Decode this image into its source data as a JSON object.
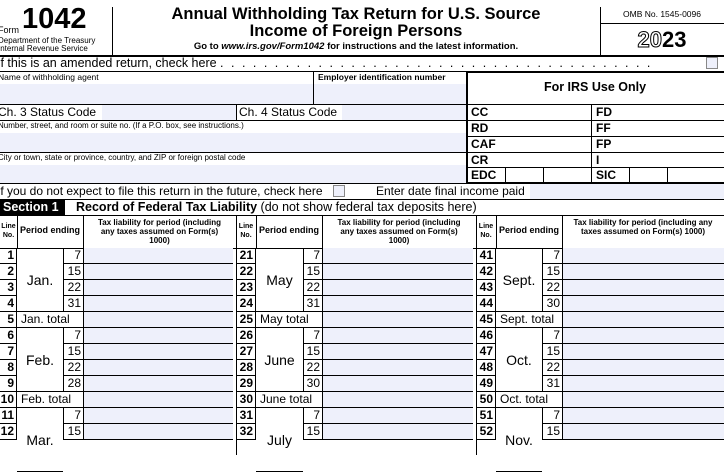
{
  "header": {
    "form_label": "Form",
    "form_number": "1042",
    "dept": "Department of the Treasury",
    "irs": "Internal Revenue Service",
    "title_line1": "Annual Withholding Tax Return for U.S. Source",
    "title_line2": "Income of Foreign Persons",
    "goto_prefix": "Go to ",
    "goto_url": "www.irs.gov/Form1042",
    "goto_suffix": " for instructions and the latest information.",
    "omb": "OMB No. 1545-0096",
    "year_outline": "20",
    "year_bold": "23"
  },
  "amended": {
    "label": "If this is an amended return, check here",
    "dots": ". . . . . . . . . . . . . . . . . . . . . . . . . . . . . . . . . . . . . . . .",
    "checked": false
  },
  "agent": {
    "name_label": "Name of withholding agent",
    "ein_label": "Employer identification number",
    "ch3_label": "Ch. 3 Status Code",
    "ch4_label": "Ch. 4 Status Code",
    "address_label": "Number, street, and room or suite no. (If a P.O. box, see instructions.)",
    "city_label": "City or town, state or province, country, and ZIP or foreign postal code",
    "future_label": "If you do not expect to file this return in the future, check here",
    "future_checked": false,
    "final_date_label": "Enter date final income paid"
  },
  "irs_use": {
    "title": "For IRS Use Only",
    "left": [
      "CC",
      "RD",
      "CAF",
      "CR",
      "EDC"
    ],
    "right": [
      "FD",
      "FF",
      "FP",
      "I",
      "SIC"
    ]
  },
  "section1": {
    "badge": "Section 1",
    "title": "Record of Federal Tax Liability",
    "note": "(do not show federal tax deposits here)",
    "col_line": "Line No.",
    "col_period": "Period ending",
    "col_tax": "Tax liability for period (including any taxes assumed on Form(s) 1000)",
    "groups": [
      {
        "months": [
          {
            "month": "Jan.",
            "lines": [
              1,
              2,
              3,
              4
            ],
            "days": [
              "7",
              "15",
              "22",
              "31"
            ],
            "total_line": 5,
            "total_label": "Jan. total"
          },
          {
            "month": "Feb.",
            "lines": [
              6,
              7,
              8,
              9
            ],
            "days": [
              "7",
              "15",
              "22",
              "28"
            ],
            "total_line": 10,
            "total_label": "Feb. total"
          },
          {
            "month": "Mar.",
            "lines": [
              11,
              12
            ],
            "days": [
              "7",
              "15"
            ]
          }
        ]
      },
      {
        "months": [
          {
            "month": "May",
            "lines": [
              21,
              22,
              23,
              24
            ],
            "days": [
              "7",
              "15",
              "22",
              "31"
            ],
            "total_line": 25,
            "total_label": "May total"
          },
          {
            "month": "June",
            "lines": [
              26,
              27,
              28,
              29
            ],
            "days": [
              "7",
              "15",
              "22",
              "30"
            ],
            "total_line": 30,
            "total_label": "June total"
          },
          {
            "month": "July",
            "lines": [
              31,
              32
            ],
            "days": [
              "7",
              "15"
            ]
          }
        ]
      },
      {
        "months": [
          {
            "month": "Sept.",
            "lines": [
              41,
              42,
              43,
              44
            ],
            "days": [
              "7",
              "15",
              "22",
              "30"
            ],
            "total_line": 45,
            "total_label": "Sept. total"
          },
          {
            "month": "Oct.",
            "lines": [
              46,
              47,
              48,
              49
            ],
            "days": [
              "7",
              "15",
              "22",
              "31"
            ],
            "total_line": 50,
            "total_label": "Oct. total"
          },
          {
            "month": "Nov.",
            "lines": [
              51,
              52
            ],
            "days": [
              "7",
              "15"
            ]
          }
        ]
      }
    ]
  }
}
